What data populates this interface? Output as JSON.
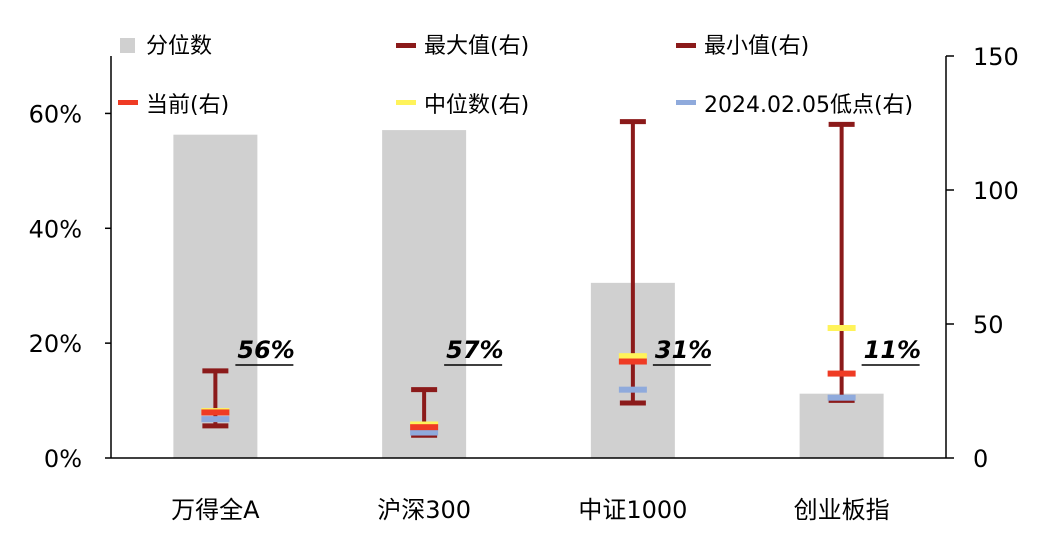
{
  "chart_data": {
    "type": "bar",
    "categories": [
      "万得全A",
      "沪深300",
      "中证1000",
      "创业板指"
    ],
    "left_axis": {
      "ylim": [
        0,
        0.7
      ],
      "ticks": [
        "0%",
        "20%",
        "40%",
        "60%"
      ],
      "tick_values": [
        0,
        0.2,
        0.4,
        0.6
      ]
    },
    "right_axis": {
      "ylim": [
        0,
        150
      ],
      "ticks": [
        "0",
        "50",
        "100",
        "150"
      ],
      "tick_values": [
        0,
        50,
        100,
        150
      ]
    },
    "series": [
      {
        "name": "分位数",
        "axis": "left",
        "kind": "bar",
        "values": [
          0.563,
          0.571,
          0.305,
          0.112
        ]
      },
      {
        "name": "最大值(右)",
        "axis": "right",
        "kind": "range-top",
        "values": [
          32.5,
          25.5,
          125.5,
          124.5
        ]
      },
      {
        "name": "最小值(右)",
        "axis": "right",
        "kind": "range-bottom",
        "values": [
          12,
          8.5,
          20.5,
          21.5
        ]
      },
      {
        "name": "当前(右)",
        "axis": "right",
        "kind": "marker",
        "values": [
          17,
          11.5,
          36,
          31.5
        ]
      },
      {
        "name": "中位数(右)",
        "axis": "right",
        "kind": "marker",
        "values": [
          17.5,
          12.5,
          38,
          48.5
        ]
      },
      {
        "name": "2024.02.05低点(右)",
        "axis": "right",
        "kind": "marker",
        "values": [
          14.5,
          9.5,
          25.5,
          22.5
        ]
      }
    ],
    "data_labels": [
      "56%",
      "57%",
      "31%",
      "11%"
    ],
    "colors": {
      "bar": "#d0d0d0",
      "range": "#8b1a1a",
      "current": "#ef3b24",
      "median": "#fff35a",
      "low": "#8faadc",
      "axis": "#000000"
    },
    "legend_position": "top",
    "grid": false
  }
}
